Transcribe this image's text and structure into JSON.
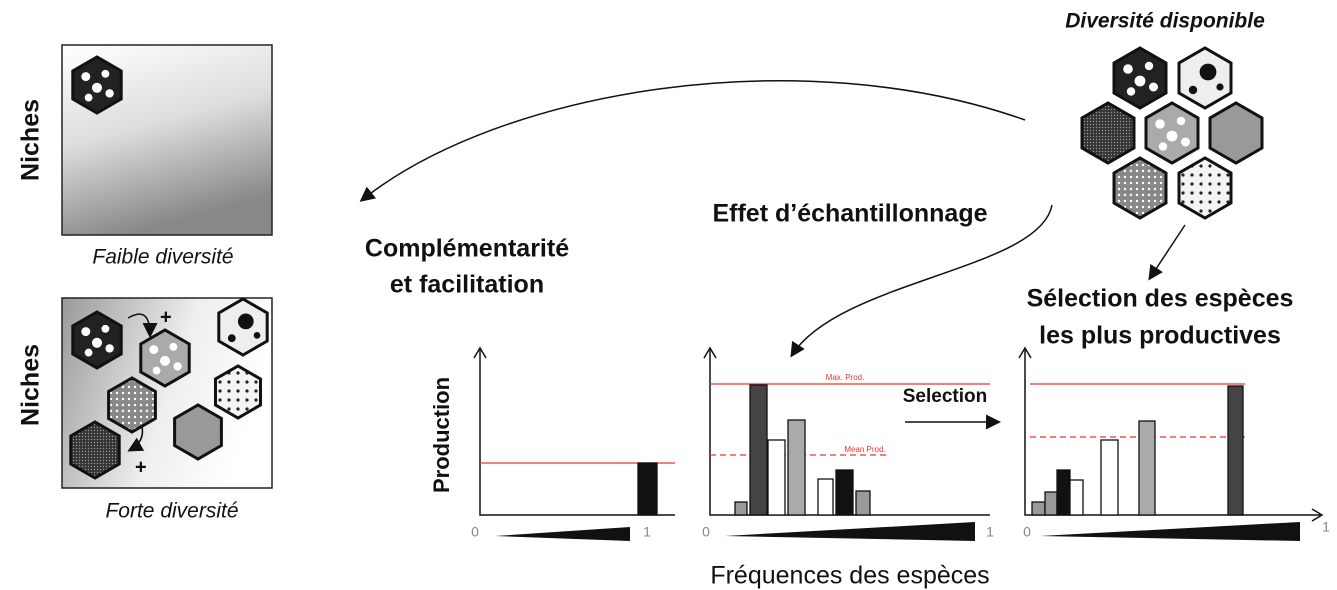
{
  "pool": {
    "title": "Diversité disponible"
  },
  "left_panel": {
    "top": {
      "axis_label": "Niches",
      "caption": "Faible diversité"
    },
    "bottom": {
      "axis_label": "Niches",
      "caption": "Forte diversité",
      "signs": [
        "+",
        "+"
      ]
    }
  },
  "mechanisms": {
    "complementarity": [
      "Complémentarité",
      "et facilitation"
    ],
    "sampling": "Effet d’échantillonnage",
    "selection": [
      "Sélection des espèces",
      "les plus productives"
    ]
  },
  "charts": {
    "y_label": "Production",
    "x_label": "Fréquences des espèces",
    "x_min": "0",
    "x_max": "1",
    "max_label": "Max. Prod.",
    "mean_label": "Mean Prod.",
    "selection_label": "Selection"
  }
}
